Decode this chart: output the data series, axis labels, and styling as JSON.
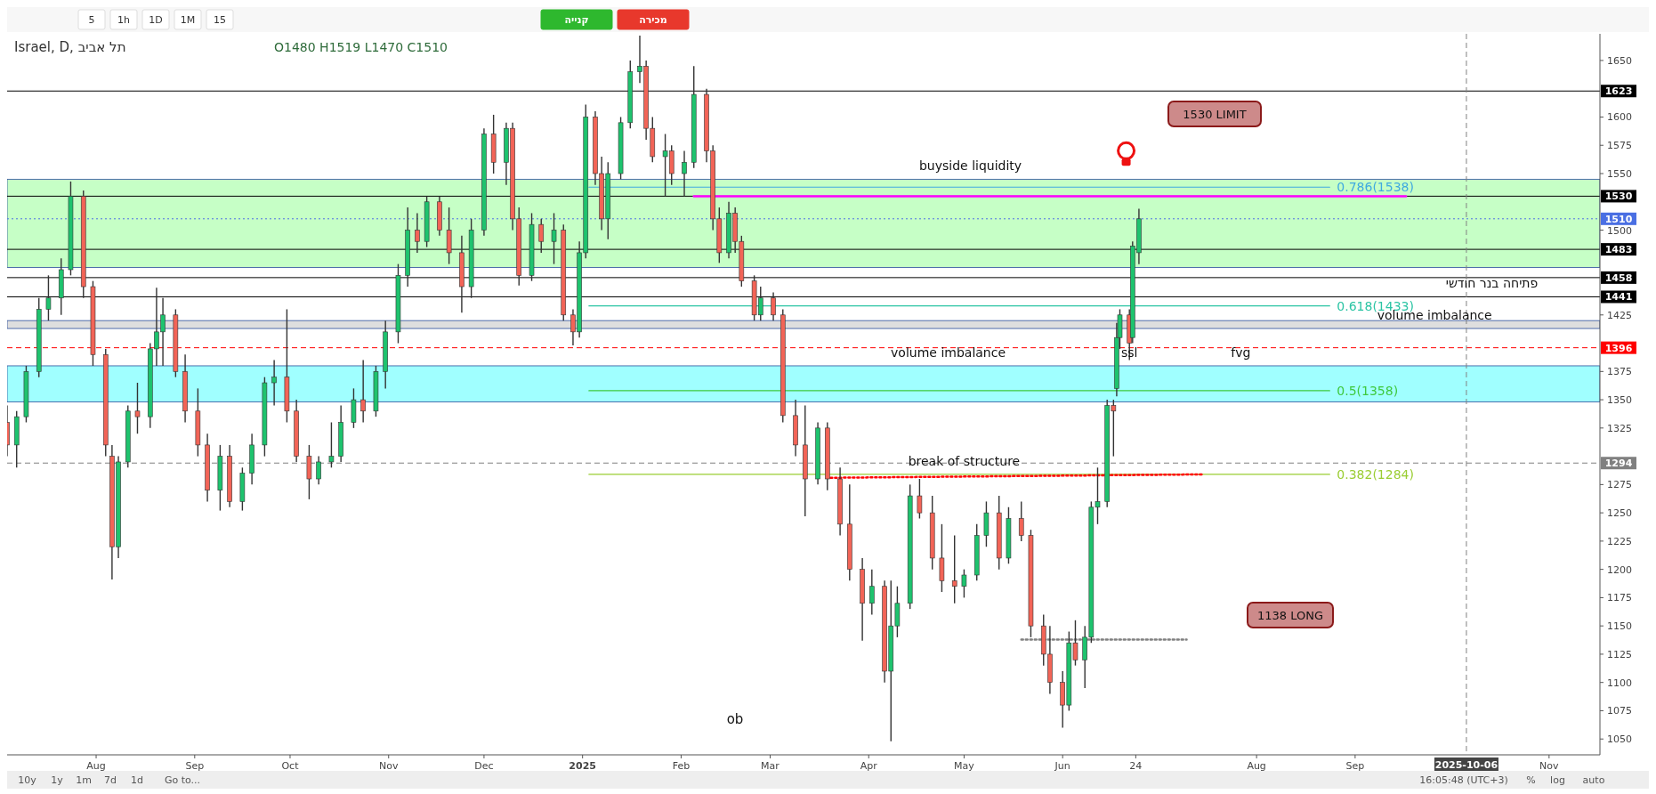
{
  "chart_data": [
    {
      "type": "other",
      "annotations": [
        "5",
        "1h",
        "1D",
        "1M",
        "15",
        "קנייה",
        "מכירה"
      ],
      "colors": [
        null,
        null,
        null,
        null,
        null,
        "#2eb82e",
        "#e8382c"
      ]
    },
    {
      "type": "candlestick",
      "title": "Israel, D, תל אביב",
      "subtitle": "O1480 H1519 L1470 C1510",
      "xlim": [
        "2024-07-04",
        "2025-11-17"
      ],
      "ylim": [
        1036,
        1672
      ],
      "xticks": [
        {
          "value": "2024-08-01",
          "label": "Aug"
        },
        {
          "value": "2024-09-01",
          "label": "Sep"
        },
        {
          "value": "2024-10-01",
          "label": "Oct"
        },
        {
          "value": "2024-11-01",
          "label": "Nov"
        },
        {
          "value": "2024-12-01",
          "label": "Dec"
        },
        {
          "value": "2025-01-01",
          "label": "2025"
        },
        {
          "value": "2025-02-01",
          "label": "Feb"
        },
        {
          "value": "2025-03-01",
          "label": "Mar"
        },
        {
          "value": "2025-04-01",
          "label": "Apr"
        },
        {
          "value": "2025-05-01",
          "label": "May"
        },
        {
          "value": "2025-06-01",
          "label": "Jun"
        },
        {
          "value": "2025-06-24",
          "label": "24"
        },
        {
          "value": "2025-08-01",
          "label": "Aug"
        },
        {
          "value": "2025-09-01",
          "label": "Sep"
        },
        {
          "value": "2025-11-01",
          "label": "Nov"
        }
      ],
      "yticks": [
        1050,
        1075,
        1100,
        1125,
        1150,
        1175,
        1200,
        1225,
        1250,
        1275,
        1325,
        1350,
        1375,
        1425,
        1500,
        1550,
        1575,
        1600,
        1650
      ],
      "x": [
        "2024-07-04",
        "2024-07-07",
        "2024-07-10",
        "2024-07-14",
        "2024-07-17",
        "2024-07-21",
        "2024-07-24",
        "2024-07-28",
        "2024-07-31",
        "2024-08-04",
        "2024-08-06",
        "2024-08-08",
        "2024-08-11",
        "2024-08-14",
        "2024-08-18",
        "2024-08-20",
        "2024-08-22",
        "2024-08-26",
        "2024-08-29",
        "2024-09-02",
        "2024-09-05",
        "2024-09-09",
        "2024-09-12",
        "2024-09-16",
        "2024-09-19",
        "2024-09-23",
        "2024-09-26",
        "2024-09-30",
        "2024-10-03",
        "2024-10-07",
        "2024-10-10",
        "2024-10-14",
        "2024-10-17",
        "2024-10-21",
        "2024-10-24",
        "2024-10-28",
        "2024-10-31",
        "2024-11-04",
        "2024-11-07",
        "2024-11-10",
        "2024-11-13",
        "2024-11-17",
        "2024-11-20",
        "2024-11-24",
        "2024-11-27",
        "2024-12-01",
        "2024-12-04",
        "2024-12-08",
        "2024-12-10",
        "2024-12-12",
        "2024-12-16",
        "2024-12-19",
        "2024-12-23",
        "2024-12-26",
        "2024-12-29",
        "2024-12-31",
        "2025-01-02",
        "2025-01-05",
        "2025-01-07",
        "2025-01-09",
        "2025-01-13",
        "2025-01-16",
        "2025-01-19",
        "2025-01-21",
        "2025-01-23",
        "2025-01-27",
        "2025-01-29",
        "2025-02-02",
        "2025-02-05",
        "2025-02-09",
        "2025-02-11",
        "2025-02-13",
        "2025-02-16",
        "2025-02-18",
        "2025-02-20",
        "2025-02-24",
        "2025-02-26",
        "2025-03-02",
        "2025-03-05",
        "2025-03-09",
        "2025-03-12",
        "2025-03-16",
        "2025-03-19",
        "2025-03-23",
        "2025-03-26",
        "2025-03-30",
        "2025-04-02",
        "2025-04-06",
        "2025-04-08",
        "2025-04-10",
        "2025-04-14",
        "2025-04-17",
        "2025-04-21",
        "2025-04-24",
        "2025-04-28",
        "2025-05-01",
        "2025-05-05",
        "2025-05-08",
        "2025-05-12",
        "2025-05-15",
        "2025-05-19",
        "2025-05-22",
        "2025-05-26",
        "2025-05-28",
        "2025-06-01",
        "2025-06-03",
        "2025-06-05",
        "2025-06-08",
        "2025-06-10",
        "2025-06-12",
        "2025-06-15",
        "2025-06-17",
        "2025-06-18",
        "2025-06-19",
        "2025-06-22",
        "2025-06-23",
        "2025-06-25"
      ],
      "ohlc": [
        [
          1330,
          1345,
          1300,
          1310
        ],
        [
          1310,
          1340,
          1290,
          1335
        ],
        [
          1335,
          1380,
          1330,
          1375
        ],
        [
          1375,
          1440,
          1370,
          1430
        ],
        [
          1430,
          1460,
          1420,
          1440
        ],
        [
          1440,
          1475,
          1425,
          1465
        ],
        [
          1465,
          1543,
          1460,
          1530
        ],
        [
          1530,
          1535,
          1440,
          1450
        ],
        [
          1450,
          1455,
          1380,
          1390
        ],
        [
          1390,
          1395,
          1300,
          1310
        ],
        [
          1300,
          1310,
          1191,
          1220
        ],
        [
          1220,
          1300,
          1210,
          1295
        ],
        [
          1295,
          1345,
          1290,
          1340
        ],
        [
          1340,
          1365,
          1320,
          1335
        ],
        [
          1335,
          1400,
          1325,
          1395
        ],
        [
          1395,
          1449,
          1380,
          1410
        ],
        [
          1410,
          1440,
          1380,
          1425
        ],
        [
          1425,
          1430,
          1370,
          1375
        ],
        [
          1375,
          1390,
          1330,
          1340
        ],
        [
          1340,
          1360,
          1300,
          1310
        ],
        [
          1310,
          1320,
          1260,
          1270
        ],
        [
          1270,
          1310,
          1252,
          1300
        ],
        [
          1300,
          1310,
          1255,
          1260
        ],
        [
          1260,
          1290,
          1252,
          1285
        ],
        [
          1285,
          1320,
          1275,
          1310
        ],
        [
          1310,
          1370,
          1300,
          1365
        ],
        [
          1365,
          1385,
          1345,
          1370
        ],
        [
          1370,
          1430,
          1330,
          1340
        ],
        [
          1340,
          1350,
          1295,
          1300
        ],
        [
          1300,
          1310,
          1262,
          1280
        ],
        [
          1280,
          1300,
          1275,
          1295
        ],
        [
          1295,
          1330,
          1290,
          1300
        ],
        [
          1300,
          1345,
          1295,
          1330
        ],
        [
          1330,
          1360,
          1325,
          1350
        ],
        [
          1350,
          1385,
          1330,
          1340
        ],
        [
          1340,
          1380,
          1335,
          1375
        ],
        [
          1375,
          1420,
          1360,
          1410
        ],
        [
          1410,
          1470,
          1400,
          1460
        ],
        [
          1460,
          1520,
          1450,
          1500
        ],
        [
          1500,
          1515,
          1480,
          1490
        ],
        [
          1490,
          1530,
          1485,
          1525
        ],
        [
          1525,
          1530,
          1495,
          1500
        ],
        [
          1500,
          1520,
          1470,
          1480
        ],
        [
          1480,
          1495,
          1427,
          1450
        ],
        [
          1450,
          1510,
          1440,
          1500
        ],
        [
          1500,
          1590,
          1495,
          1585
        ],
        [
          1585,
          1602,
          1550,
          1560
        ],
        [
          1560,
          1595,
          1540,
          1590
        ],
        [
          1590,
          1595,
          1500,
          1510
        ],
        [
          1510,
          1520,
          1451,
          1460
        ],
        [
          1460,
          1515,
          1455,
          1505
        ],
        [
          1505,
          1510,
          1480,
          1490
        ],
        [
          1490,
          1515,
          1470,
          1500
        ],
        [
          1500,
          1505,
          1420,
          1425
        ],
        [
          1425,
          1430,
          1398,
          1410
        ],
        [
          1410,
          1490,
          1405,
          1480
        ],
        [
          1480,
          1611,
          1475,
          1600
        ],
        [
          1600,
          1605,
          1540,
          1550
        ],
        [
          1550,
          1565,
          1500,
          1510
        ],
        [
          1510,
          1560,
          1492,
          1550
        ],
        [
          1550,
          1600,
          1545,
          1595
        ],
        [
          1595,
          1650,
          1590,
          1640
        ],
        [
          1640,
          1672,
          1630,
          1645
        ],
        [
          1645,
          1650,
          1580,
          1590
        ],
        [
          1590,
          1600,
          1560,
          1565
        ],
        [
          1565,
          1585,
          1530,
          1570
        ],
        [
          1570,
          1575,
          1540,
          1550
        ],
        [
          1550,
          1570,
          1530,
          1560
        ],
        [
          1560,
          1645,
          1555,
          1620
        ],
        [
          1620,
          1625,
          1560,
          1570
        ],
        [
          1570,
          1575,
          1500,
          1510
        ],
        [
          1510,
          1520,
          1471,
          1480
        ],
        [
          1480,
          1525,
          1475,
          1515
        ],
        [
          1515,
          1520,
          1480,
          1490
        ],
        [
          1490,
          1495,
          1450,
          1455
        ],
        [
          1455,
          1460,
          1420,
          1425
        ],
        [
          1425,
          1450,
          1420,
          1440
        ],
        [
          1440,
          1445,
          1420,
          1425
        ],
        [
          1425,
          1430,
          1330,
          1336
        ],
        [
          1336,
          1350,
          1300,
          1310
        ],
        [
          1310,
          1345,
          1247,
          1280
        ],
        [
          1280,
          1330,
          1275,
          1325
        ],
        [
          1325,
          1330,
          1270,
          1280
        ],
        [
          1280,
          1290,
          1230,
          1240
        ],
        [
          1240,
          1275,
          1190,
          1200
        ],
        [
          1200,
          1210,
          1137,
          1170
        ],
        [
          1170,
          1200,
          1160,
          1185
        ],
        [
          1185,
          1190,
          1100,
          1110
        ],
        [
          1110,
          1190,
          1048,
          1150
        ],
        [
          1150,
          1185,
          1140,
          1170
        ],
        [
          1170,
          1275,
          1165,
          1265
        ],
        [
          1265,
          1280,
          1245,
          1250
        ],
        [
          1250,
          1265,
          1200,
          1210
        ],
        [
          1210,
          1240,
          1180,
          1190
        ],
        [
          1190,
          1230,
          1170,
          1185
        ],
        [
          1185,
          1200,
          1175,
          1195
        ],
        [
          1195,
          1240,
          1190,
          1230
        ],
        [
          1230,
          1260,
          1220,
          1250
        ],
        [
          1250,
          1265,
          1200,
          1210
        ],
        [
          1210,
          1255,
          1205,
          1245
        ],
        [
          1245,
          1260,
          1225,
          1230
        ],
        [
          1230,
          1235,
          1140,
          1150
        ],
        [
          1150,
          1160,
          1115,
          1125
        ],
        [
          1125,
          1150,
          1090,
          1100
        ],
        [
          1100,
          1110,
          1060,
          1080
        ],
        [
          1080,
          1145,
          1075,
          1135
        ],
        [
          1135,
          1155,
          1115,
          1120
        ],
        [
          1120,
          1150,
          1095,
          1140
        ],
        [
          1140,
          1260,
          1135,
          1255
        ],
        [
          1255,
          1290,
          1240,
          1260
        ],
        [
          1260,
          1350,
          1255,
          1345
        ],
        [
          1345,
          1350,
          1300,
          1340
        ],
        [
          1360,
          1418,
          1353,
          1405
        ],
        [
          1405,
          1430,
          1395,
          1425
        ],
        [
          1425,
          1430,
          1385,
          1400
        ],
        [
          1405,
          1490,
          1400,
          1486
        ],
        [
          1480,
          1519,
          1470,
          1510
        ]
      ],
      "colors": [
        "#f26457",
        "#1ec36e",
        "#1ec36e",
        "#1ec36e",
        "#1ec36e",
        "#1ec36e",
        "#1ec36e",
        "#f26457",
        "#f26457",
        "#f26457",
        "#f26457",
        "#1ec36e",
        "#1ec36e",
        "#f26457",
        "#1ec36e",
        "#1ec36e",
        "#1ec36e",
        "#f26457",
        "#f26457",
        "#f26457",
        "#f26457",
        "#1ec36e",
        "#f26457",
        "#1ec36e",
        "#1ec36e",
        "#1ec36e",
        "#1ec36e",
        "#f26457",
        "#f26457",
        "#f26457",
        "#1ec36e",
        "#1ec36e",
        "#1ec36e",
        "#1ec36e",
        "#f26457",
        "#1ec36e",
        "#1ec36e",
        "#1ec36e",
        "#1ec36e",
        "#f26457",
        "#1ec36e",
        "#f26457",
        "#f26457",
        "#f26457",
        "#1ec36e",
        "#1ec36e",
        "#f26457",
        "#1ec36e",
        "#f26457",
        "#f26457",
        "#1ec36e",
        "#f26457",
        "#1ec36e",
        "#f26457",
        "#f26457",
        "#1ec36e",
        "#1ec36e",
        "#f26457",
        "#f26457",
        "#1ec36e",
        "#1ec36e",
        "#1ec36e",
        "#1ec36e",
        "#f26457",
        "#f26457",
        "#1ec36e",
        "#f26457",
        "#1ec36e",
        "#1ec36e",
        "#f26457",
        "#f26457",
        "#f26457",
        "#1ec36e",
        "#f26457",
        "#f26457",
        "#f26457",
        "#1ec36e",
        "#f26457",
        "#f26457",
        "#f26457",
        "#f26457",
        "#1ec36e",
        "#f26457",
        "#f26457",
        "#f26457",
        "#f26457",
        "#1ec36e",
        "#f26457",
        "#1ec36e",
        "#1ec36e",
        "#1ec36e",
        "#f26457",
        "#f26457",
        "#f26457",
        "#f26457",
        "#1ec36e",
        "#1ec36e",
        "#1ec36e",
        "#f26457",
        "#1ec36e",
        "#f26457",
        "#f26457",
        "#f26457",
        "#f26457",
        "#f26457",
        "#1ec36e",
        "#f26457",
        "#1ec36e",
        "#1ec36e",
        "#1ec36e",
        "#1ec36e",
        "#f26457",
        "#1ec36e",
        "#1ec36e",
        "#f26457",
        "#1ec36e",
        "#1ec36e"
      ],
      "series": [
        {
          "type": "line",
          "name": "0.786(1538)",
          "color": "#3fa9e0",
          "x": [
            "2025-01-03",
            "2025-08-24"
          ],
          "values": [
            1538,
            1538
          ]
        },
        {
          "type": "line",
          "name": "0.618(1433)",
          "color": "#2bc4a4",
          "x": [
            "2025-01-03",
            "2025-08-24"
          ],
          "values": [
            1433,
            1433
          ]
        },
        {
          "type": "line",
          "name": "0.5(1358)",
          "color": "#3ec93e",
          "x": [
            "2025-01-03",
            "2025-08-24"
          ],
          "values": [
            1358,
            1358
          ]
        },
        {
          "type": "line",
          "name": "0.382(1284)",
          "color": "#9acd32",
          "x": [
            "2025-01-03",
            "2025-08-24"
          ],
          "values": [
            1284,
            1284
          ]
        },
        {
          "type": "line",
          "color": "#ff00ff",
          "x": [
            "2025-02-05",
            "2025-09-17"
          ],
          "values": [
            1530,
            1530
          ]
        },
        {
          "type": "line",
          "color": "#ff0000",
          "line_style": "dotted",
          "x": [
            "2025-03-20",
            "2025-07-15"
          ],
          "values": [
            1281,
            1284
          ]
        },
        {
          "type": "line",
          "color": "#808080",
          "line_style": "dotted",
          "x": [
            "2025-05-19",
            "2025-07-10"
          ],
          "values": [
            1138,
            1138
          ]
        }
      ],
      "bands": [
        {
          "axis": "y",
          "from": 1467,
          "to": 1545,
          "color": "#b3ffb3"
        },
        {
          "axis": "y",
          "from": 1413,
          "to": 1420,
          "color": "#d3d3d3"
        },
        {
          "axis": "y",
          "from": 1348,
          "to": 1380,
          "color": "#80ffff"
        }
      ],
      "ref_lines": [
        {
          "axis": "y",
          "value": 1623,
          "label": "1623",
          "color": "#000000"
        },
        {
          "axis": "y",
          "value": 1530,
          "label": "1530",
          "color": "#000000"
        },
        {
          "axis": "y",
          "value": 1510,
          "label": "1510",
          "color": "#4a6fe3",
          "line_style": "dotted"
        },
        {
          "axis": "y",
          "value": 1483,
          "label": "1483",
          "color": "#000000"
        },
        {
          "axis": "y",
          "value": 1458,
          "label": "1458",
          "color": "#000000"
        },
        {
          "axis": "y",
          "value": 1441,
          "label": "1441",
          "color": "#000000"
        },
        {
          "axis": "y",
          "value": 1396,
          "label": "1396",
          "color": "#ff0000",
          "line_style": "dashed"
        },
        {
          "axis": "y",
          "value": 1294,
          "label": "1294",
          "color": "#808080",
          "line_style": "dashed"
        },
        {
          "axis": "x",
          "value": "2025-10-06",
          "label": "2025-10-06",
          "color": "#808080",
          "line_style": "dashed"
        }
      ],
      "annotations": [
        {
          "text": "buyside liquidity",
          "x": "2025-05-03",
          "y": 1545
        },
        "1530 LIMIT",
        "1138 LONG",
        {
          "text": "volume imbalance",
          "x": "2025-09-26",
          "y": 1413
        },
        {
          "text": "volume imbalance",
          "x": "2025-04-26",
          "y": 1380
        },
        {
          "text": "fvg",
          "x": "2025-07-27",
          "y": 1380
        },
        {
          "text": "ssl",
          "x": "2025-06-22",
          "y": 1380
        },
        {
          "text": "break of structure",
          "x": "2025-05-01",
          "y": 1284
        },
        "ob",
        {
          "text": "פתיחה בנר חודשי",
          "x": "2025-10-14",
          "y": 1441
        }
      ]
    },
    {
      "type": "other",
      "annotations": [
        "10y",
        "1y",
        "1m",
        "7d",
        "1d",
        "Go to..."
      ]
    },
    {
      "type": "other",
      "annotations": [
        "16:05:48 (UTC+3)",
        "%",
        "log",
        "auto"
      ]
    }
  ]
}
